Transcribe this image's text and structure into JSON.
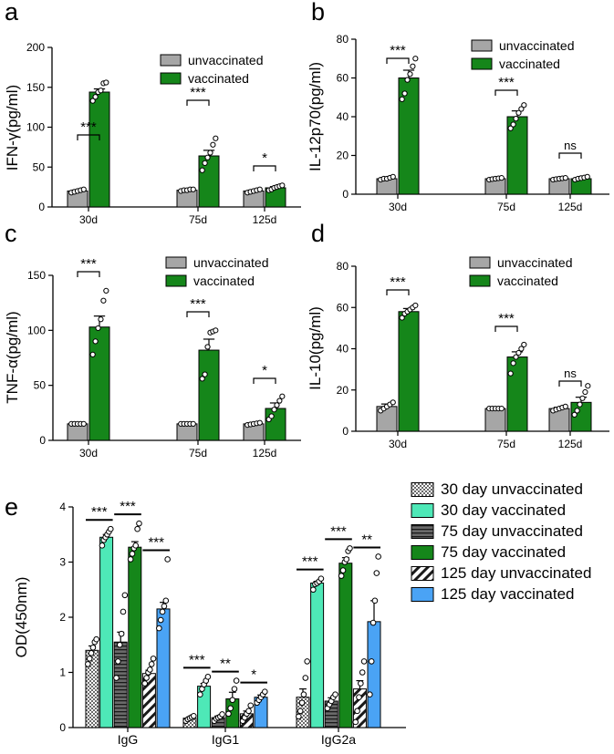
{
  "colors": {
    "unvaccinated": "#a6a6a6",
    "vaccinated": "#15861a",
    "teal": "#4ee8b7",
    "blue": "#4aa3f5",
    "dark_gray": "#6a6a6a",
    "light_gray": "#d8d8d8"
  },
  "chart_data": [
    {
      "id": "a",
      "panel_label": "a",
      "type": "bar",
      "ylabel": "IFN-γ(pg/ml)",
      "ylim": [
        0,
        200
      ],
      "yticks": [
        0,
        50,
        100,
        150,
        200
      ],
      "categories": [
        "30d",
        "75d",
        "125d"
      ],
      "legend_position": "top-right",
      "series": [
        {
          "name": "unvaccinated",
          "values": [
            20,
            21,
            20
          ],
          "errors": [
            1.2,
            1.2,
            1.2
          ],
          "points": [
            [
              18,
              19,
              20,
              21,
              22
            ],
            [
              20,
              21,
              21,
              22,
              22
            ],
            [
              18,
              19,
              20,
              21,
              22
            ]
          ]
        },
        {
          "name": "vaccinated",
          "values": [
            144,
            64,
            24
          ],
          "errors": [
            4,
            7,
            1.5
          ],
          "points": [
            [
              133,
              138,
              144,
              146,
              155,
              156
            ],
            [
              46,
              55,
              62,
              68,
              78,
              86
            ],
            [
              21,
              22,
              24,
              25,
              26,
              27
            ]
          ]
        }
      ],
      "significance": [
        "***",
        "***",
        "*"
      ]
    },
    {
      "id": "b",
      "panel_label": "b",
      "type": "bar",
      "ylabel": "IL-12p70(pg/ml)",
      "ylim": [
        0,
        80
      ],
      "yticks": [
        0,
        20,
        40,
        60,
        80
      ],
      "categories": [
        "30d",
        "75d",
        "125d"
      ],
      "legend_position": "top-right",
      "series": [
        {
          "name": "unvaccinated",
          "values": [
            8,
            8,
            8
          ],
          "errors": [
            0.4,
            0.3,
            0.3
          ],
          "points": [
            [
              7.5,
              8,
              8,
              8.5,
              9
            ],
            [
              7.5,
              7.8,
              8,
              8.2,
              8.4
            ],
            [
              7.5,
              7.8,
              8,
              8.2,
              8.4
            ]
          ]
        },
        {
          "name": "vaccinated",
          "values": [
            60,
            40,
            8
          ],
          "errors": [
            4,
            3,
            0.4
          ],
          "points": [
            [
              49,
              52,
              59,
              62,
              66,
              70
            ],
            [
              34,
              36,
              39,
              42,
              44,
              46
            ],
            [
              7.5,
              8,
              8.3,
              8.6,
              9
            ]
          ]
        }
      ],
      "significance": [
        "***",
        "***",
        "ns"
      ]
    },
    {
      "id": "c",
      "panel_label": "c",
      "type": "bar",
      "ylabel": "TNF-α(pg/ml)",
      "ylim": [
        0,
        150
      ],
      "yticks": [
        0,
        50,
        100,
        150
      ],
      "categories": [
        "30d",
        "75d",
        "125d"
      ],
      "legend_position": "top-right",
      "series": [
        {
          "name": "unvaccinated",
          "values": [
            15,
            15,
            15
          ],
          "errors": [
            0.3,
            0.3,
            0.3
          ],
          "points": [
            [
              15,
              15,
              15,
              15,
              15
            ],
            [
              15,
              15,
              15,
              15,
              15
            ],
            [
              14,
              14.5,
              15,
              15.5,
              16
            ]
          ]
        },
        {
          "name": "vaccinated",
          "values": [
            103,
            82,
            29
          ],
          "errors": [
            10,
            10,
            5
          ],
          "points": [
            [
              78,
              90,
              102,
              110,
              127,
              136
            ],
            [
              56,
              60,
              85,
              98,
              99,
              100
            ],
            [
              19,
              22,
              28,
              32,
              36,
              40
            ]
          ]
        }
      ],
      "significance": [
        "***",
        "***",
        "*"
      ]
    },
    {
      "id": "d",
      "panel_label": "d",
      "type": "bar",
      "ylabel": "IL-10(pg/ml)",
      "ylim": [
        0,
        80
      ],
      "yticks": [
        0,
        20,
        40,
        60,
        80
      ],
      "categories": [
        "30d",
        "75d",
        "125d"
      ],
      "legend_position": "top-right",
      "series": [
        {
          "name": "unvaccinated",
          "values": [
            12,
            11,
            11
          ],
          "errors": [
            1.2,
            0.3,
            0.6
          ],
          "points": [
            [
              10,
              11,
              12,
              13,
              14
            ],
            [
              11,
              11,
              11,
              11,
              11
            ],
            [
              10,
              10.5,
              11,
              11.5,
              12
            ]
          ]
        },
        {
          "name": "vaccinated",
          "values": [
            58,
            36,
            14
          ],
          "errors": [
            1.5,
            2.5,
            2.5
          ],
          "points": [
            [
              55,
              57,
              58,
              59,
              60,
              61
            ],
            [
              28,
              33,
              36,
              38,
              40,
              42
            ],
            [
              8,
              10,
              13,
              16,
              19,
              22
            ]
          ]
        }
      ],
      "significance": [
        "***",
        "***",
        "ns"
      ]
    },
    {
      "id": "e",
      "panel_label": "e",
      "type": "bar",
      "ylabel": "OD(450nm)",
      "ylim": [
        0,
        4
      ],
      "yticks": [
        0,
        1,
        2,
        3,
        4
      ],
      "categories": [
        "IgG",
        "IgG1",
        "IgG2a"
      ],
      "legend_position": "right",
      "series": [
        {
          "name": "30 day unvaccinated",
          "values": [
            1.4,
            0.17,
            0.55
          ],
          "errors": [
            0.08,
            0.02,
            0.15
          ],
          "points": [
            [
              1.15,
              1.25,
              1.35,
              1.45,
              1.55,
              1.6
            ],
            [
              0.12,
              0.15,
              0.17,
              0.19,
              0.21
            ],
            [
              0.2,
              0.3,
              0.45,
              0.6,
              0.9,
              1.2
            ]
          ]
        },
        {
          "name": "30 day vaccinated",
          "values": [
            3.45,
            0.75,
            2.62
          ],
          "errors": [
            0.05,
            0.05,
            0.03
          ],
          "points": [
            [
              3.3,
              3.4,
              3.45,
              3.5,
              3.55,
              3.6
            ],
            [
              0.6,
              0.7,
              0.78,
              0.85,
              0.92
            ],
            [
              2.5,
              2.6,
              2.62,
              2.65,
              2.7
            ]
          ]
        },
        {
          "name": "75 day unvaccinated",
          "values": [
            1.55,
            0.18,
            0.48
          ],
          "errors": [
            0.18,
            0.03,
            0.06
          ],
          "points": [
            [
              0.9,
              1.2,
              1.5,
              1.7,
              2.1,
              2.4
            ],
            [
              0.12,
              0.16,
              0.18,
              0.2,
              0.24
            ],
            [
              0.35,
              0.42,
              0.48,
              0.55,
              0.6
            ]
          ]
        },
        {
          "name": "75 day vaccinated",
          "values": [
            3.27,
            0.52,
            2.98
          ],
          "errors": [
            0.1,
            0.12,
            0.1
          ],
          "points": [
            [
              3.05,
              3.15,
              3.25,
              3.3,
              3.6,
              3.7
            ],
            [
              0.25,
              0.35,
              0.5,
              0.7,
              0.85
            ],
            [
              2.75,
              2.85,
              3.0,
              3.05,
              3.2,
              3.25
            ]
          ]
        },
        {
          "name": "125 day unvaccinated",
          "values": [
            0.98,
            0.25,
            0.7
          ],
          "errors": [
            0.06,
            0.05,
            0.15
          ],
          "points": [
            [
              0.8,
              0.9,
              1.0,
              1.05,
              1.15,
              1.25
            ],
            [
              0.12,
              0.18,
              0.25,
              0.3,
              0.4
            ],
            [
              0.1,
              0.3,
              0.55,
              0.8,
              1.0,
              1.2
            ]
          ]
        },
        {
          "name": "125 day vaccinated",
          "values": [
            2.15,
            0.55,
            1.92
          ],
          "errors": [
            0.12,
            0.04,
            0.38
          ],
          "points": [
            [
              1.8,
              1.95,
              2.1,
              2.2,
              2.3,
              3.05
            ],
            [
              0.45,
              0.5,
              0.55,
              0.6,
              0.65
            ],
            [
              0.6,
              1.2,
              1.9,
              2.3,
              2.8,
              3.1
            ]
          ]
        }
      ],
      "significance": [
        [
          "***",
          "***",
          "***"
        ],
        [
          "***",
          "**",
          "*"
        ],
        [
          "***",
          "***",
          "**"
        ]
      ]
    }
  ]
}
